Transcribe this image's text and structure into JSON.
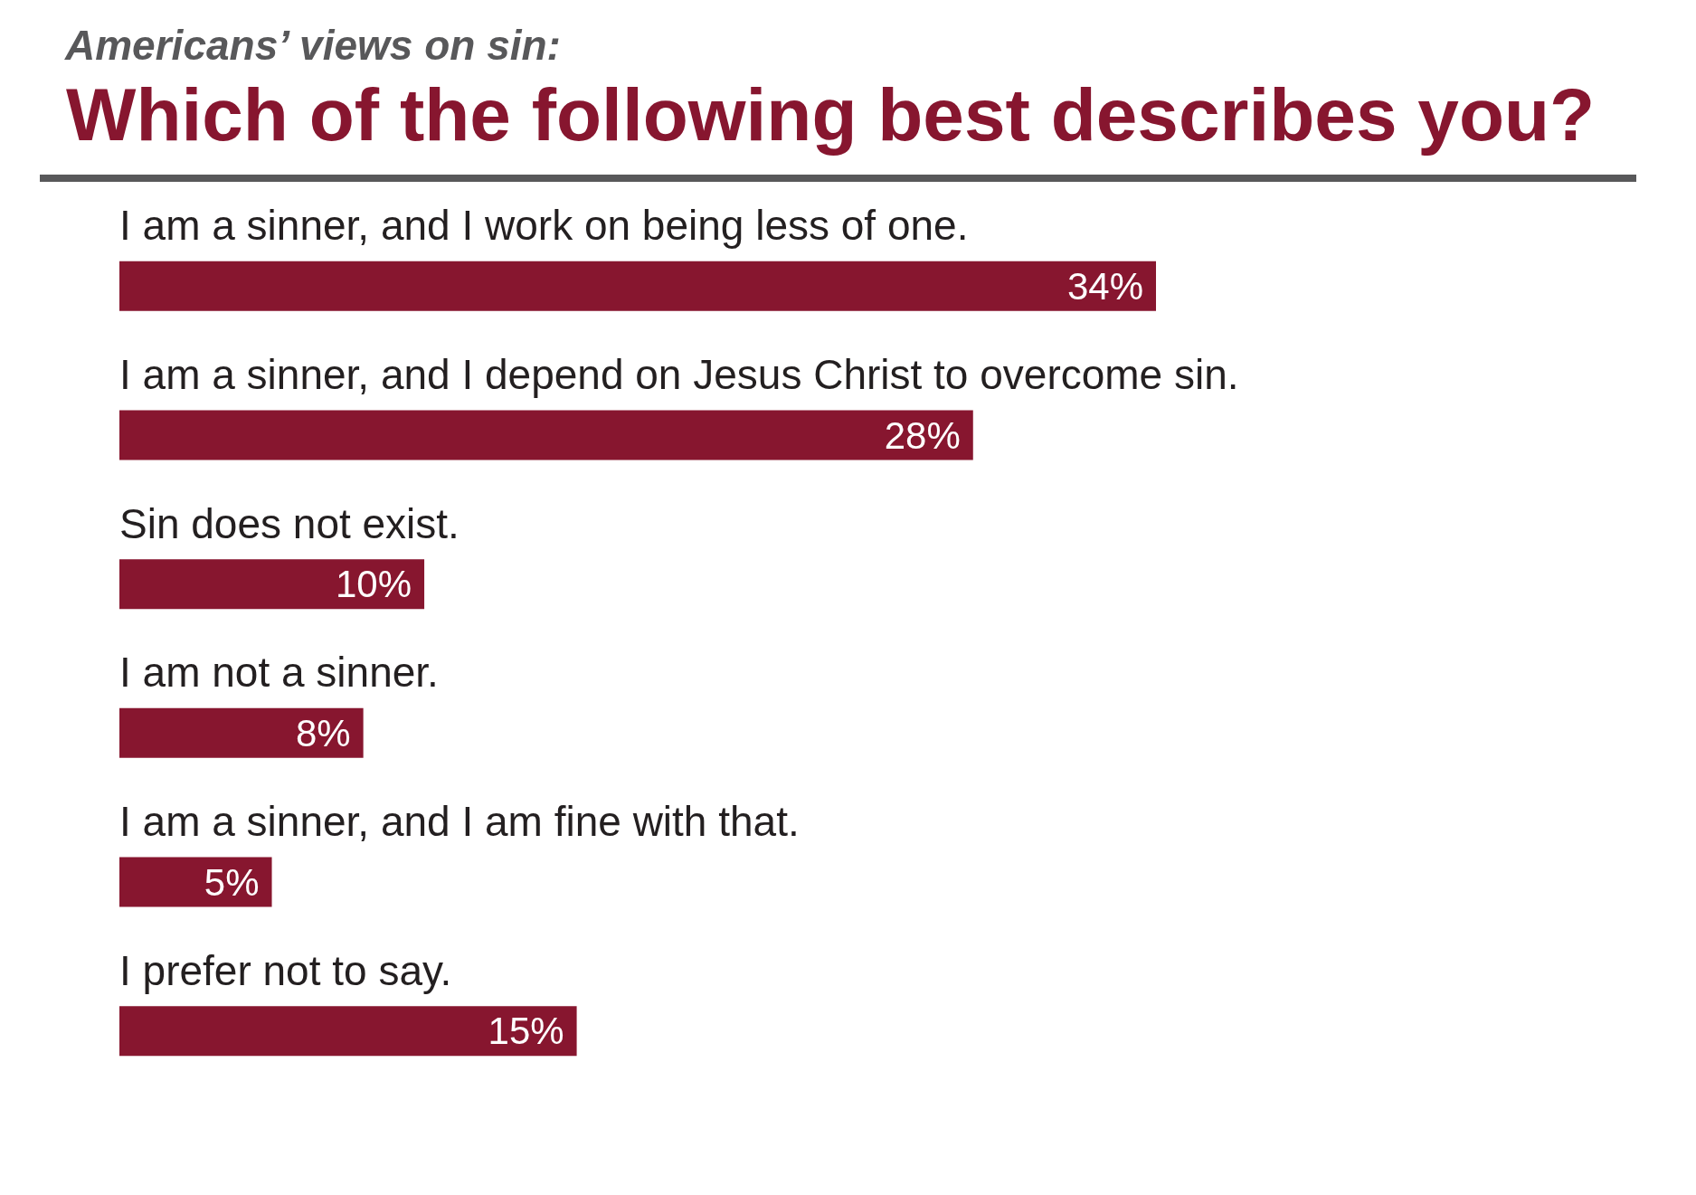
{
  "chart_data": {
    "type": "bar",
    "orientation": "horizontal",
    "subtitle": "Americans’ views on sin:",
    "title": "Which of the following best describes you?",
    "categories": [
      "I am a sinner, and I work on being less of one.",
      "I am a sinner, and I depend on Jesus Christ to overcome sin.",
      "Sin does not exist.",
      "I am not a sinner.",
      "I am a sinner, and I am fine with that.",
      "I prefer not to say."
    ],
    "values": [
      34,
      28,
      10,
      8,
      5,
      15
    ],
    "value_labels": [
      "34%",
      "28%",
      "10%",
      "8%",
      "5%",
      "15%"
    ],
    "color": "#87162f"
  }
}
